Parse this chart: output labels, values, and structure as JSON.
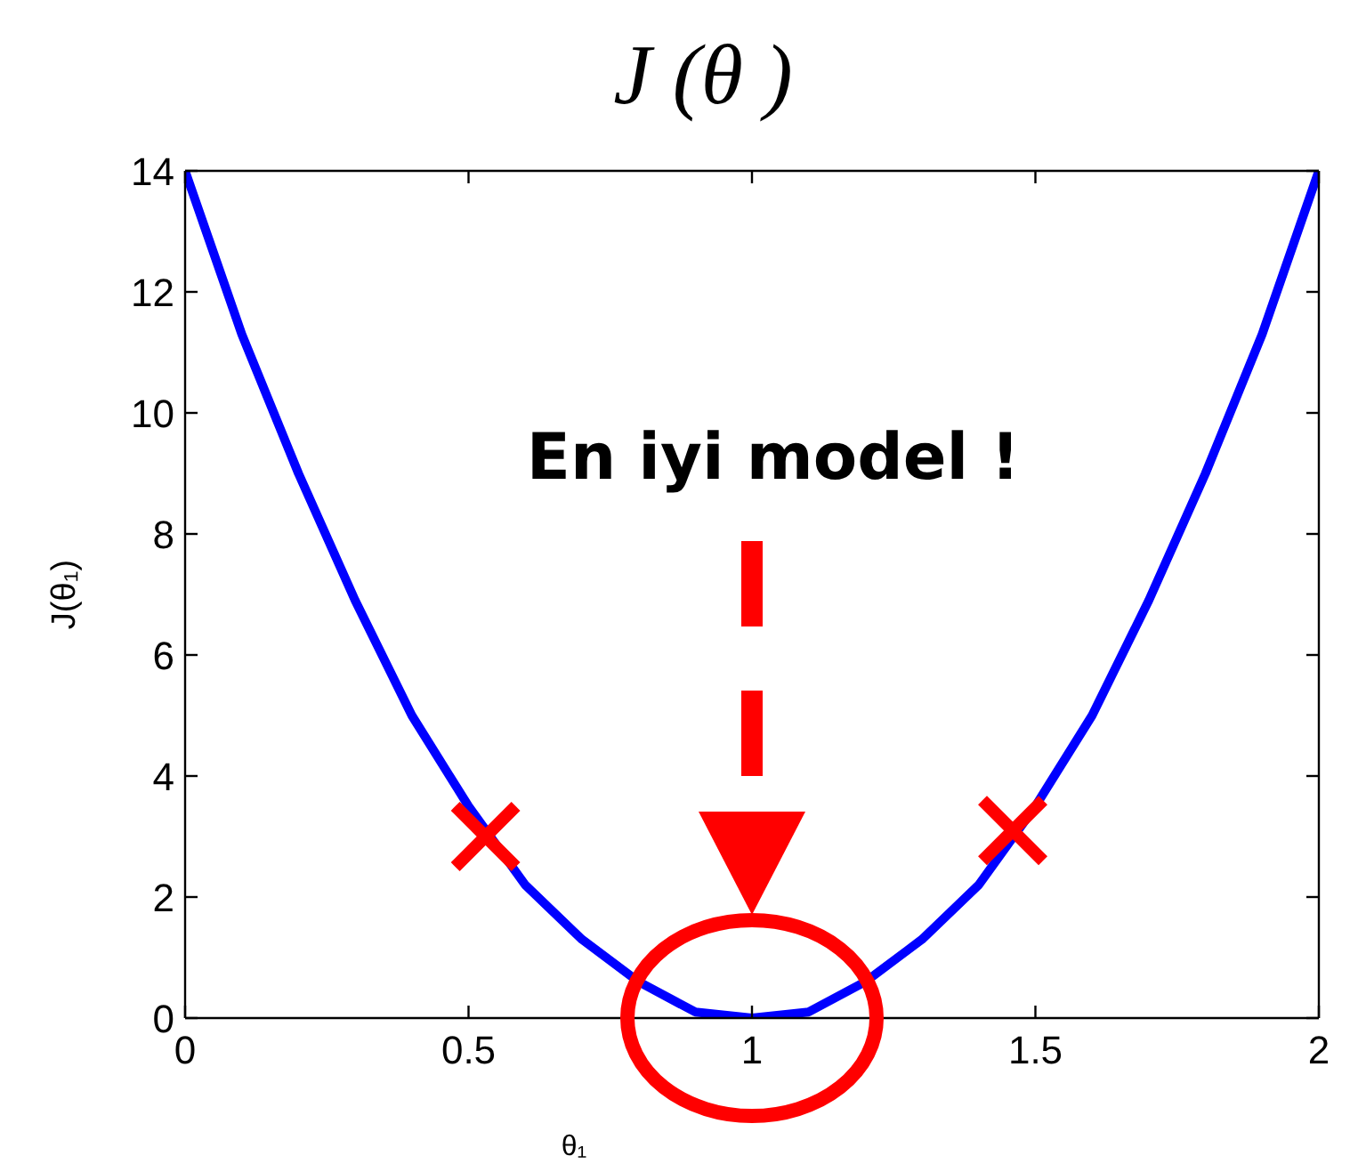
{
  "chart_data": {
    "type": "line",
    "title": "J (θ )",
    "xlabel": "θ₁",
    "ylabel": "J(θ₁)",
    "series": [
      {
        "color": "#0000ff",
        "x": [
          0,
          0.1,
          0.2,
          0.3,
          0.4,
          0.5,
          0.6,
          0.7,
          0.8,
          0.9,
          1,
          1.1,
          1.2,
          1.3,
          1.4,
          1.5,
          1.6,
          1.7,
          1.8,
          1.9,
          2
        ],
        "values": [
          14,
          11.3,
          9.0,
          6.9,
          5.0,
          3.5,
          2.2,
          1.3,
          0.6,
          0.1,
          0,
          0.1,
          0.6,
          1.3,
          2.2,
          3.5,
          5.0,
          6.9,
          9.0,
          11.3,
          14
        ]
      },
      {
        "type": "scatter",
        "color": "#ff0000",
        "marker": "cross",
        "x": [
          0.53,
          1.46
        ],
        "values": [
          3.0,
          3.1
        ]
      }
    ],
    "annotations": [
      "En iyi model !"
    ],
    "xlim": [
      0,
      2
    ],
    "xticks": [
      0,
      0.5,
      1,
      1.5,
      2
    ],
    "ylim": [
      0,
      14
    ],
    "yticks": [
      0,
      2,
      4,
      6,
      8,
      10,
      12,
      14
    ]
  }
}
